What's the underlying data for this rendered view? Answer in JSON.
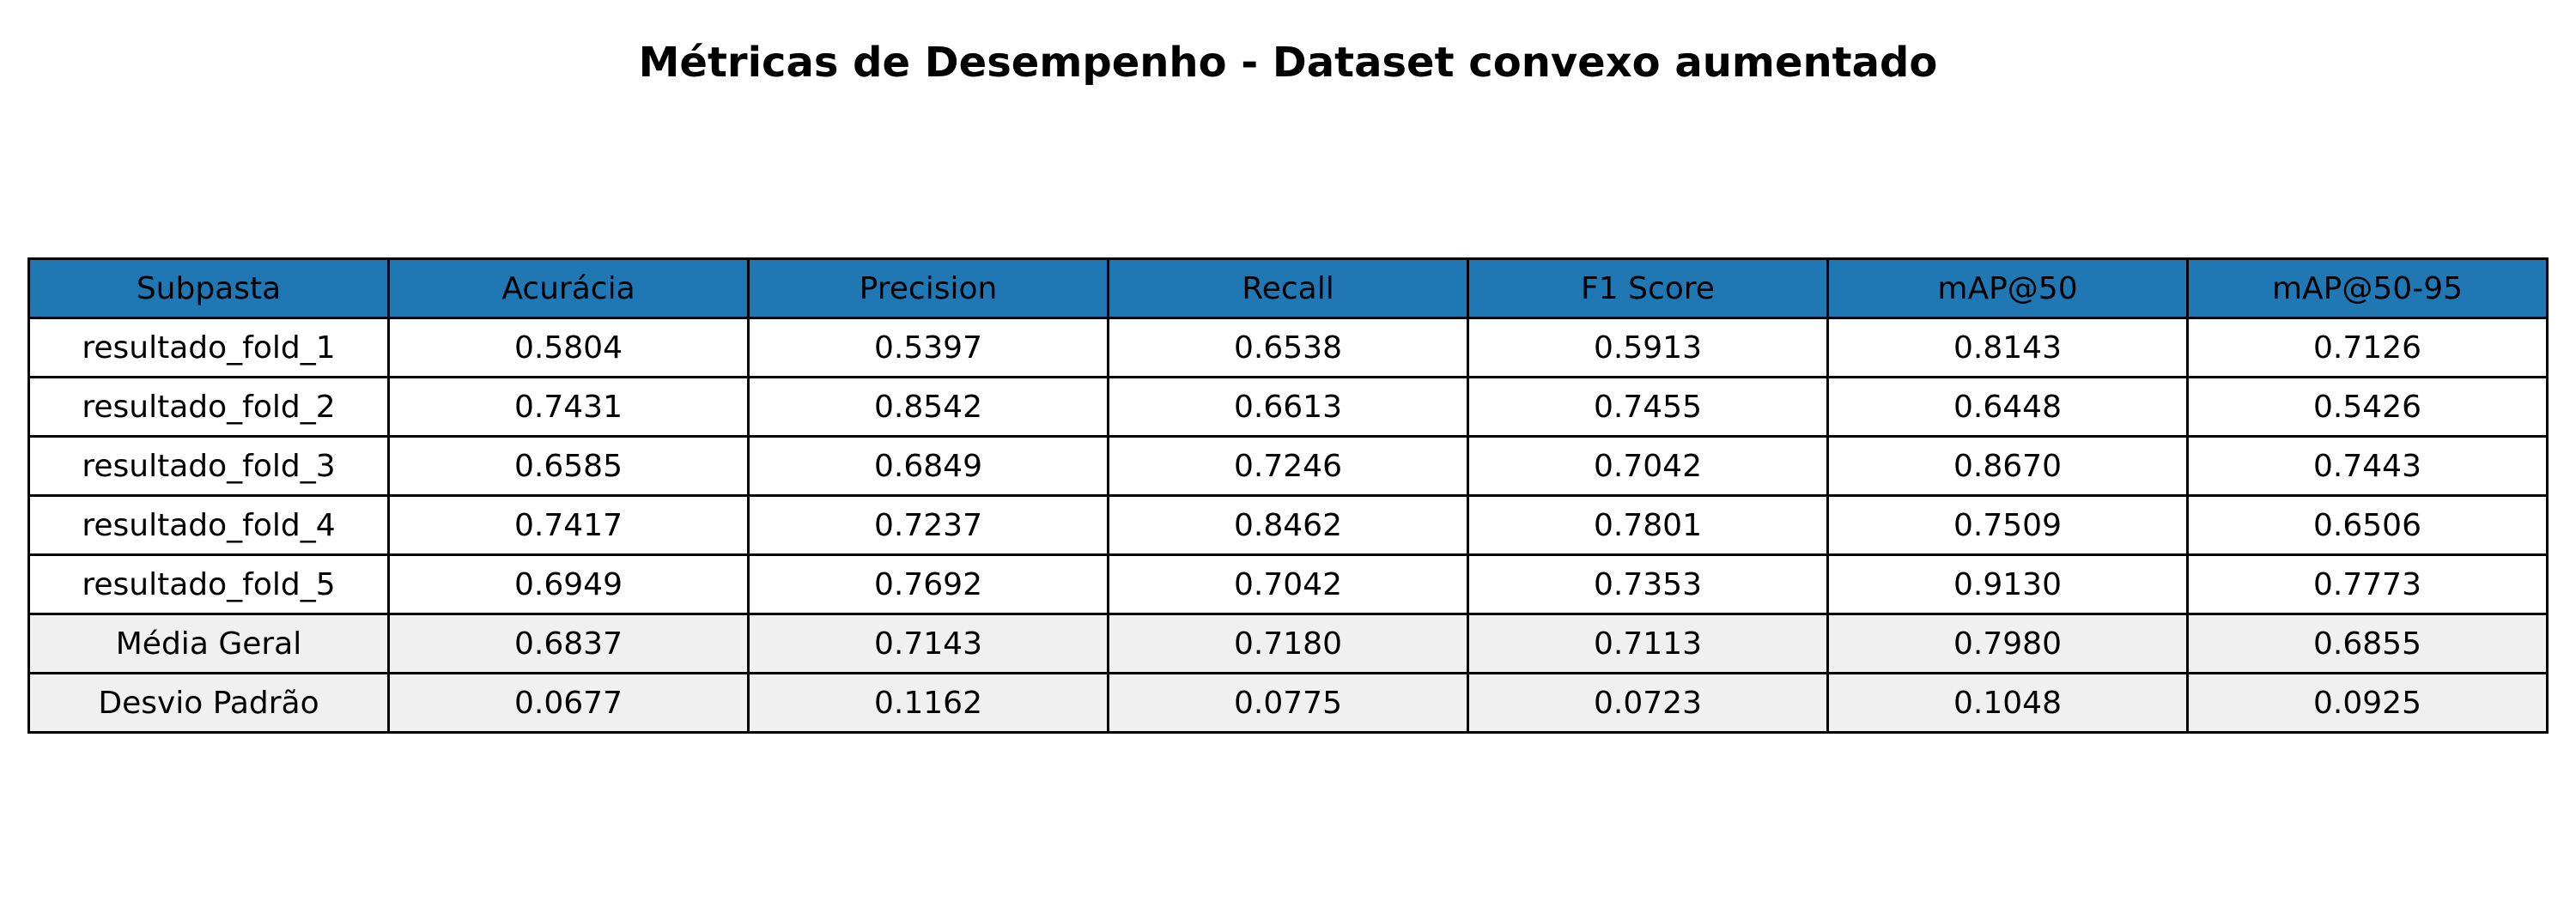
{
  "chart_data": {
    "type": "table",
    "title": "Métricas de Desempenho - Dataset convexo aumentado",
    "columns": [
      "Subpasta",
      "Acurácia",
      "Precision",
      "Recall",
      "F1 Score",
      "mAP@50",
      "mAP@50-95"
    ],
    "rows": [
      [
        "resultado_fold_1",
        "0.5804",
        "0.5397",
        "0.6538",
        "0.5913",
        "0.8143",
        "0.7126"
      ],
      [
        "resultado_fold_2",
        "0.7431",
        "0.8542",
        "0.6613",
        "0.7455",
        "0.6448",
        "0.5426"
      ],
      [
        "resultado_fold_3",
        "0.6585",
        "0.6849",
        "0.7246",
        "0.7042",
        "0.8670",
        "0.7443"
      ],
      [
        "resultado_fold_4",
        "0.7417",
        "0.7237",
        "0.8462",
        "0.7801",
        "0.7509",
        "0.6506"
      ],
      [
        "resultado_fold_5",
        "0.6949",
        "0.7692",
        "0.7042",
        "0.7353",
        "0.9130",
        "0.7773"
      ]
    ],
    "summary_rows": [
      [
        "Média Geral",
        "0.6837",
        "0.7143",
        "0.7180",
        "0.7113",
        "0.7980",
        "0.6855"
      ],
      [
        "Desvio Padrão",
        "0.0677",
        "0.1162",
        "0.0775",
        "0.0723",
        "0.1048",
        "0.0925"
      ]
    ]
  },
  "colors": {
    "header_background": "#1f77b4",
    "summary_background": "#f0f0f0",
    "cell_background": "#ffffff",
    "border": "#000000"
  }
}
